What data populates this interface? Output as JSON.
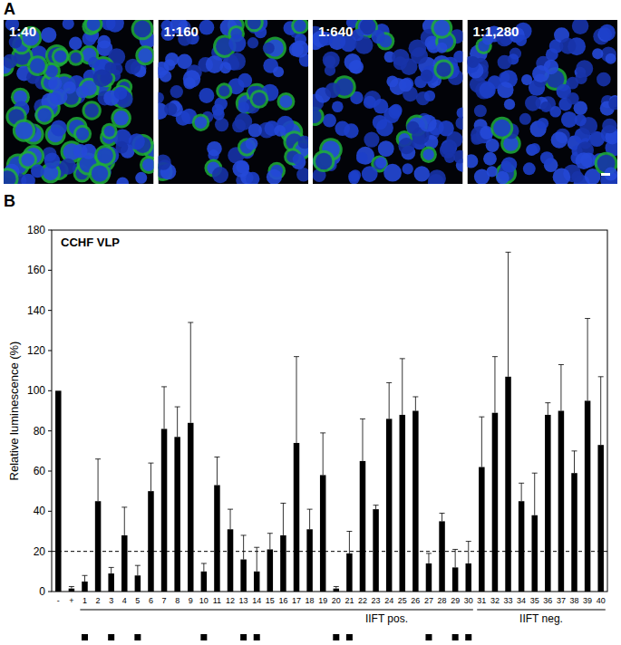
{
  "figure": {
    "panel_labels": [
      "A",
      "B"
    ],
    "images": [
      "1:40",
      "1:160",
      "1:640",
      "1:1,280"
    ]
  },
  "chart_data": {
    "type": "bar",
    "title": "CCHF VLP",
    "y_label": "Relative luminescence (%)",
    "categories": [
      "-",
      "+",
      "1",
      "2",
      "3",
      "4",
      "5",
      "6",
      "7",
      "8",
      "9",
      "10",
      "11",
      "12",
      "13",
      "14",
      "15",
      "16",
      "17",
      "18",
      "19",
      "20",
      "21",
      "22",
      "23",
      "24",
      "25",
      "26",
      "27",
      "28",
      "29",
      "30",
      "31",
      "32",
      "33",
      "34",
      "35",
      "36",
      "37",
      "38",
      "39",
      "40"
    ],
    "values": [
      100,
      1.5,
      5,
      45,
      9,
      28,
      8,
      50,
      81,
      77,
      84,
      10,
      53,
      31,
      16,
      10,
      21,
      28,
      74,
      31,
      58,
      1.5,
      19,
      65,
      41,
      86,
      88,
      90,
      14,
      35,
      12,
      14,
      62,
      89,
      107,
      45,
      38,
      88,
      90,
      59,
      95,
      73
    ],
    "errors": [
      0,
      1,
      3,
      21,
      3,
      14,
      5,
      14,
      21,
      15,
      50,
      4,
      14,
      10,
      12,
      12,
      8,
      16,
      43,
      10,
      21,
      1,
      11,
      21,
      2,
      18,
      28,
      7,
      5,
      4,
      9,
      11,
      25,
      28,
      62,
      9,
      21,
      6,
      23,
      11,
      41,
      34
    ],
    "marked": [
      false,
      false,
      true,
      false,
      true,
      false,
      true,
      false,
      false,
      false,
      false,
      true,
      false,
      false,
      true,
      true,
      false,
      false,
      false,
      false,
      false,
      true,
      true,
      false,
      false,
      false,
      false,
      false,
      true,
      false,
      true,
      true,
      false,
      false,
      false,
      false,
      false,
      false,
      false,
      false,
      false,
      false
    ],
    "groups": [
      {
        "label": "IIFT pos.",
        "from": "1",
        "to": "30"
      },
      {
        "label": "IIFT neg.",
        "from": "31",
        "to": "40"
      }
    ],
    "reference_line": 20,
    "color": "#000000",
    "ylim": [
      0,
      180
    ],
    "yticks": [
      0,
      20,
      40,
      60,
      80,
      100,
      120,
      140,
      160,
      180
    ],
    "grid": false
  }
}
